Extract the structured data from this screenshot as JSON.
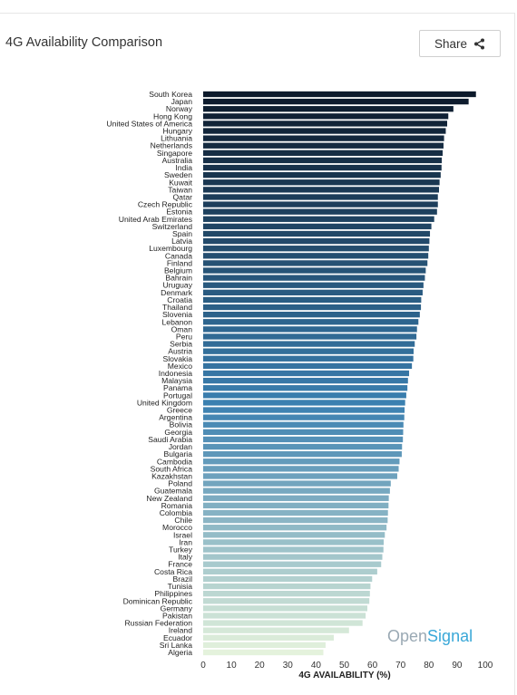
{
  "header": {
    "title": "4G Availability Comparison",
    "share_label": "Share"
  },
  "watermark": {
    "part1": "Open",
    "part2": "Signal",
    "color1": "#9aa9b4",
    "color2": "#3aa8d8"
  },
  "colors": {
    "bar_start": "#0d1a2b",
    "bar_mid": "#3a7fb0",
    "bar_end": "#e4f2dc"
  },
  "chart_data": {
    "type": "bar",
    "orientation": "horizontal",
    "title": "4G Availability Comparison",
    "xlabel": "4G AVAILABILITY (%)",
    "ylabel": "",
    "xlim": [
      0,
      100
    ],
    "xticks": [
      0,
      10,
      20,
      30,
      40,
      50,
      60,
      70,
      80,
      90,
      100
    ],
    "grid": false,
    "categories": [
      "South Korea",
      "Japan",
      "Norway",
      "Hong Kong",
      "United States of America",
      "Hungary",
      "Lithuania",
      "Netherlands",
      "Singapore",
      "Australia",
      "India",
      "Sweden",
      "Kuwait",
      "Taiwan",
      "Qatar",
      "Czech Republic",
      "Estonia",
      "United Arab Emirates",
      "Switzerland",
      "Spain",
      "Latvia",
      "Luxembourg",
      "Canada",
      "Finland",
      "Belgium",
      "Bahrain",
      "Uruguay",
      "Denmark",
      "Croatia",
      "Thailand",
      "Slovenia",
      "Lebanon",
      "Oman",
      "Peru",
      "Serbia",
      "Austria",
      "Slovakia",
      "Mexico",
      "Indonesia",
      "Malaysia",
      "Panama",
      "Portugal",
      "United Kingdom",
      "Greece",
      "Argentina",
      "Bolivia",
      "Georgia",
      "Saudi Arabia",
      "Jordan",
      "Bulgaria",
      "Cambodia",
      "South Africa",
      "Kazakhstan",
      "Poland",
      "Guatemala",
      "New Zealand",
      "Romania",
      "Colombia",
      "Chile",
      "Morocco",
      "Israel",
      "Iran",
      "Turkey",
      "Italy",
      "France",
      "Costa Rica",
      "Brazil",
      "Tunisia",
      "Philippines",
      "Dominican Republic",
      "Germany",
      "Pakistan",
      "Russian Federation",
      "Ireland",
      "Ecuador",
      "Sri Lanka",
      "Algeria"
    ],
    "values": [
      96.7,
      94.1,
      88.7,
      86.9,
      86.5,
      86.0,
      85.4,
      85.2,
      84.9,
      84.6,
      84.5,
      84.2,
      83.8,
      83.6,
      83.2,
      83.2,
      82.9,
      81.9,
      80.9,
      80.4,
      80.2,
      80.0,
      79.8,
      79.5,
      78.9,
      78.6,
      78.1,
      77.8,
      77.3,
      77.2,
      76.8,
      76.3,
      75.8,
      75.6,
      75.0,
      74.6,
      74.5,
      74.0,
      73.0,
      72.6,
      72.4,
      72.0,
      71.6,
      71.4,
      71.3,
      71.0,
      70.9,
      70.8,
      70.5,
      70.4,
      69.6,
      69.3,
      68.8,
      66.5,
      66.2,
      65.8,
      65.7,
      65.5,
      65.4,
      65.0,
      64.4,
      64.0,
      63.9,
      63.5,
      63.1,
      61.7,
      59.9,
      59.3,
      59.1,
      58.9,
      58.2,
      57.6,
      56.5,
      51.7,
      46.3,
      43.4,
      42.6
    ]
  }
}
